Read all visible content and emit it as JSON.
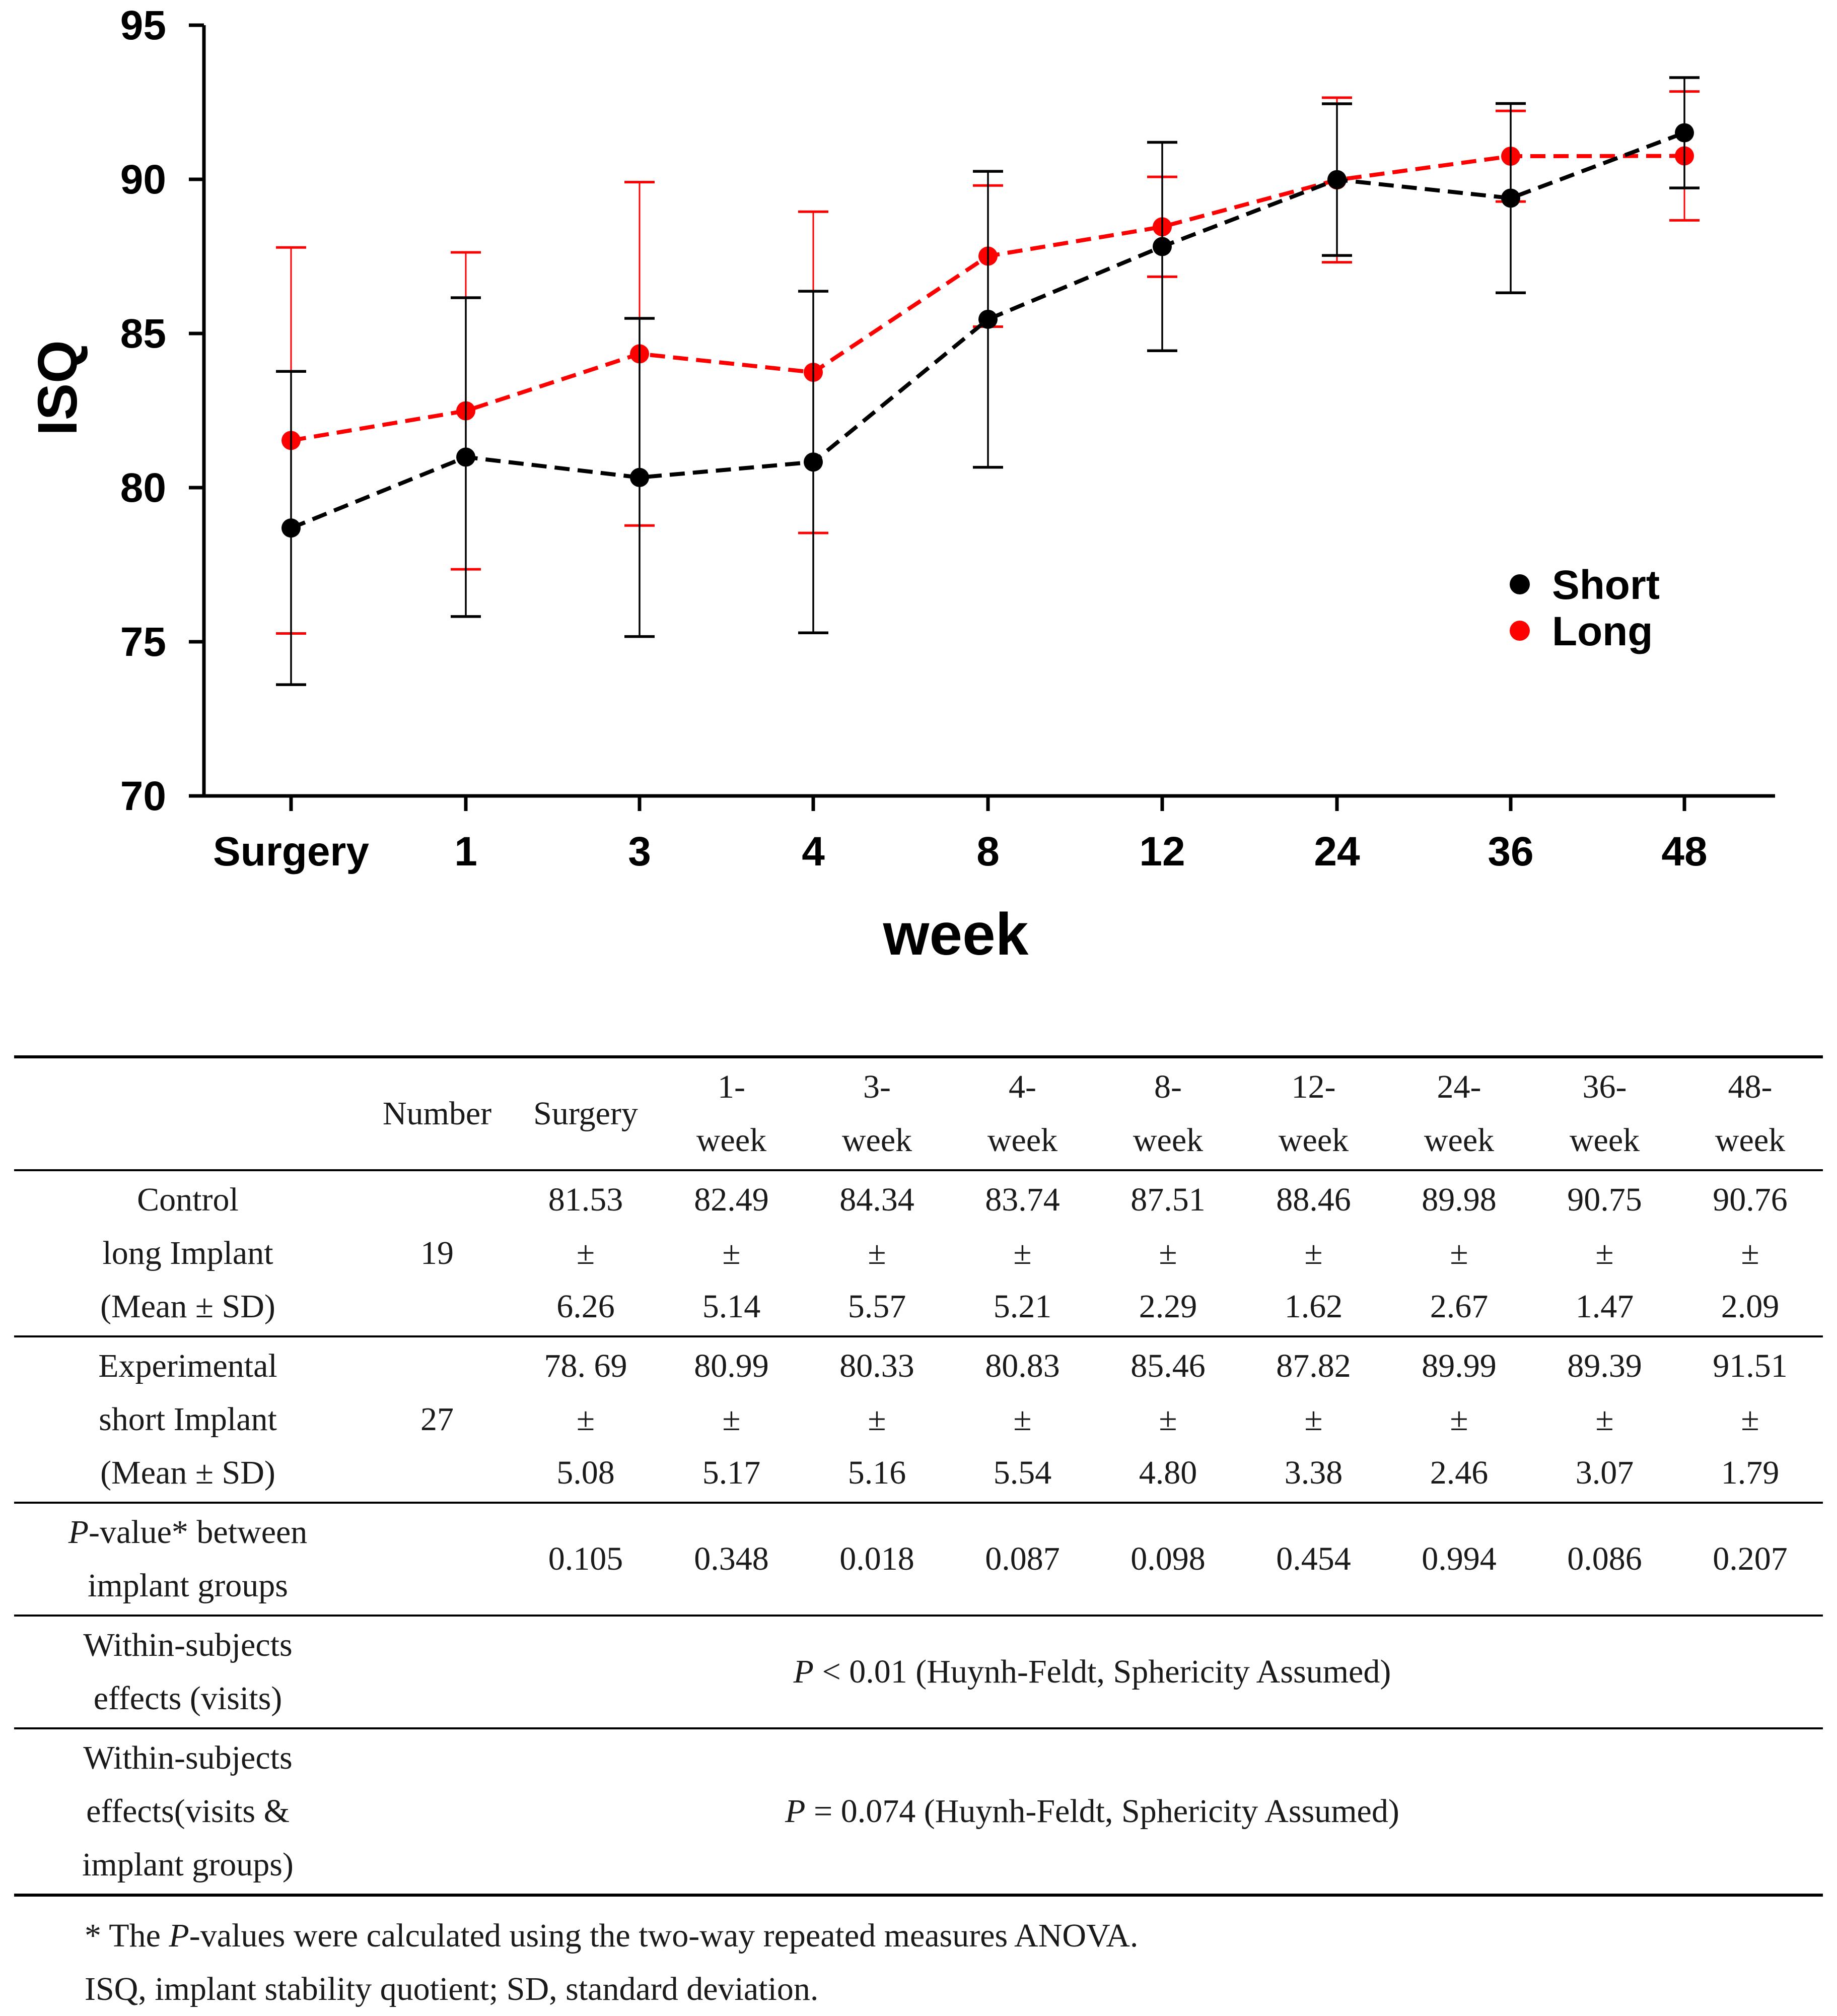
{
  "chart_data": {
    "type": "line",
    "xlabel": "week",
    "ylabel": "ISQ",
    "categories": [
      "Surgery",
      "1",
      "3",
      "4",
      "8",
      "12",
      "24",
      "36",
      "48"
    ],
    "ylim": [
      70,
      95
    ],
    "yticks": [
      70,
      75,
      80,
      85,
      90,
      95
    ],
    "grid": false,
    "legend_position": "right",
    "series": [
      {
        "name": "Short",
        "color": "#000000",
        "values": [
          78.69,
          80.99,
          80.33,
          80.83,
          85.46,
          87.82,
          89.99,
          89.39,
          91.51
        ],
        "sd": [
          5.08,
          5.17,
          5.16,
          5.54,
          4.8,
          3.38,
          2.46,
          3.07,
          1.79
        ]
      },
      {
        "name": "Long",
        "color": "#ff0000",
        "values": [
          81.53,
          82.49,
          84.34,
          83.74,
          87.51,
          88.46,
          89.98,
          90.75,
          90.76
        ],
        "sd": [
          6.26,
          5.14,
          5.57,
          5.21,
          2.29,
          1.62,
          2.67,
          1.47,
          2.09
        ]
      }
    ]
  },
  "table": {
    "header": {
      "number": "Number",
      "surgery": "Surgery",
      "weeks": [
        [
          "1-",
          "week"
        ],
        [
          "3-",
          "week"
        ],
        [
          "4-",
          "week"
        ],
        [
          "8-",
          "week"
        ],
        [
          "12-",
          "week"
        ],
        [
          "24-",
          "week"
        ],
        [
          "36-",
          "week"
        ],
        [
          "48-",
          "week"
        ]
      ]
    },
    "pm": "±",
    "control": {
      "label": [
        "Control",
        "long Implant",
        "(Mean ± SD)"
      ],
      "number": "19",
      "means": [
        "81.53",
        "82.49",
        "84.34",
        "83.74",
        "87.51",
        "88.46",
        "89.98",
        "90.75",
        "90.76"
      ],
      "sds": [
        "6.26",
        "5.14",
        "5.57",
        "5.21",
        "2.29",
        "1.62",
        "2.67",
        "1.47",
        "2.09"
      ]
    },
    "experimental": {
      "label": [
        "Experimental",
        "short Implant",
        "(Mean ± SD)"
      ],
      "number": "27",
      "means": [
        "78. 69",
        "80.99",
        "80.33",
        "80.83",
        "85.46",
        "87.82",
        "89.99",
        "89.39",
        "91.51"
      ],
      "sds": [
        "5.08",
        "5.17",
        "5.16",
        "5.54",
        "4.80",
        "3.38",
        "2.46",
        "3.07",
        "1.79"
      ]
    },
    "pvalue": {
      "label_italic": "P",
      "label_rest": "-value* between",
      "label_line2": "implant groups",
      "values": [
        "0.105",
        "0.348",
        "0.018",
        "0.087",
        "0.098",
        "0.454",
        "0.994",
        "0.086",
        "0.207"
      ]
    },
    "within_visits": {
      "label": [
        "Within-subjects",
        "effects (visits)"
      ],
      "p_italic": "P",
      "text": " < 0.01 (Huynh-Feldt, Sphericity Assumed)"
    },
    "within_interaction": {
      "label": [
        "Within-subjects",
        "effects(visits &",
        "implant groups)"
      ],
      "p_italic": "P",
      "text": " = 0.074 (Huynh-Feldt, Sphericity Assumed)"
    }
  },
  "footnotes": {
    "line1_pre": "* The ",
    "line1_italic": "P",
    "line1_post": "-values were calculated using the two-way repeated measures ANOVA.",
    "line2": "ISQ, implant stability quotient; SD, standard deviation."
  }
}
